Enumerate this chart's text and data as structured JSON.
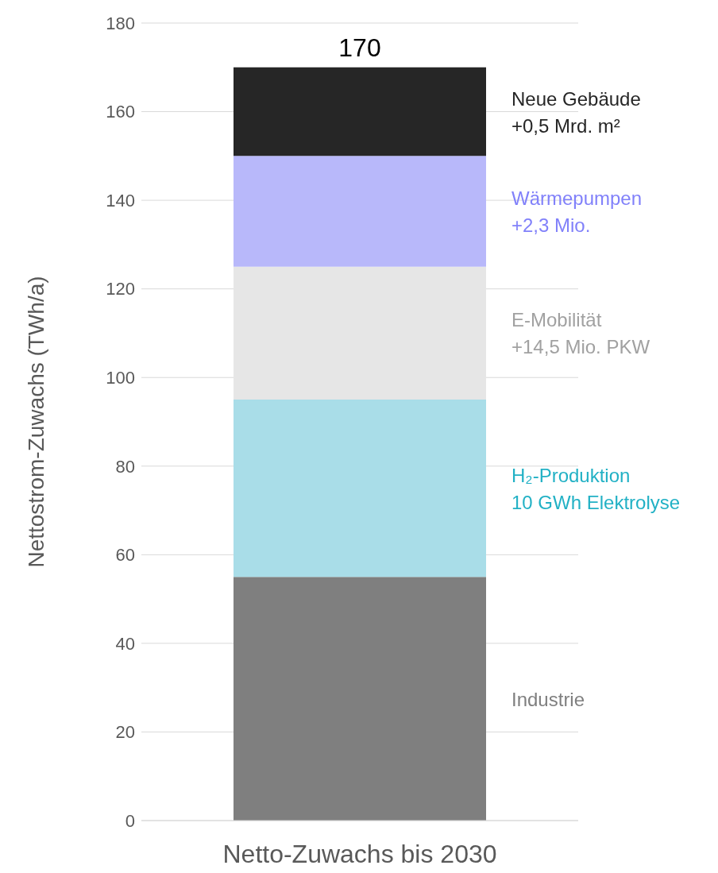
{
  "chart_data": {
    "type": "bar",
    "stacked": true,
    "ylabel": "Nettostrom-Zuwachs (TWh/a)",
    "categories": [
      "Netto-Zuwachs bis 2030"
    ],
    "series": [
      {
        "name": "Industrie",
        "color": "#7f7f7f",
        "values": [
          55
        ]
      },
      {
        "name": "H₂-Produktion\n10 GWh Elektrolyse",
        "color": "#a9dde8",
        "values": [
          40
        ]
      },
      {
        "name": "E-Mobilität\n+14,5 Mio. PKW",
        "color": "#e6e6e6",
        "values": [
          30
        ]
      },
      {
        "name": "Wärmepumpen\n+2,3 Mio.",
        "color": "#b8b8fa",
        "values": [
          25
        ]
      },
      {
        "name": "Neue Gebäude\n+0,5 Mrd. m²",
        "color": "#262626",
        "values": [
          20
        ]
      }
    ],
    "totals": [
      "170"
    ],
    "ylim": [
      0,
      180
    ],
    "yticks": [
      0,
      20,
      40,
      60,
      80,
      100,
      120,
      140,
      160,
      180
    ],
    "grid": "y"
  }
}
